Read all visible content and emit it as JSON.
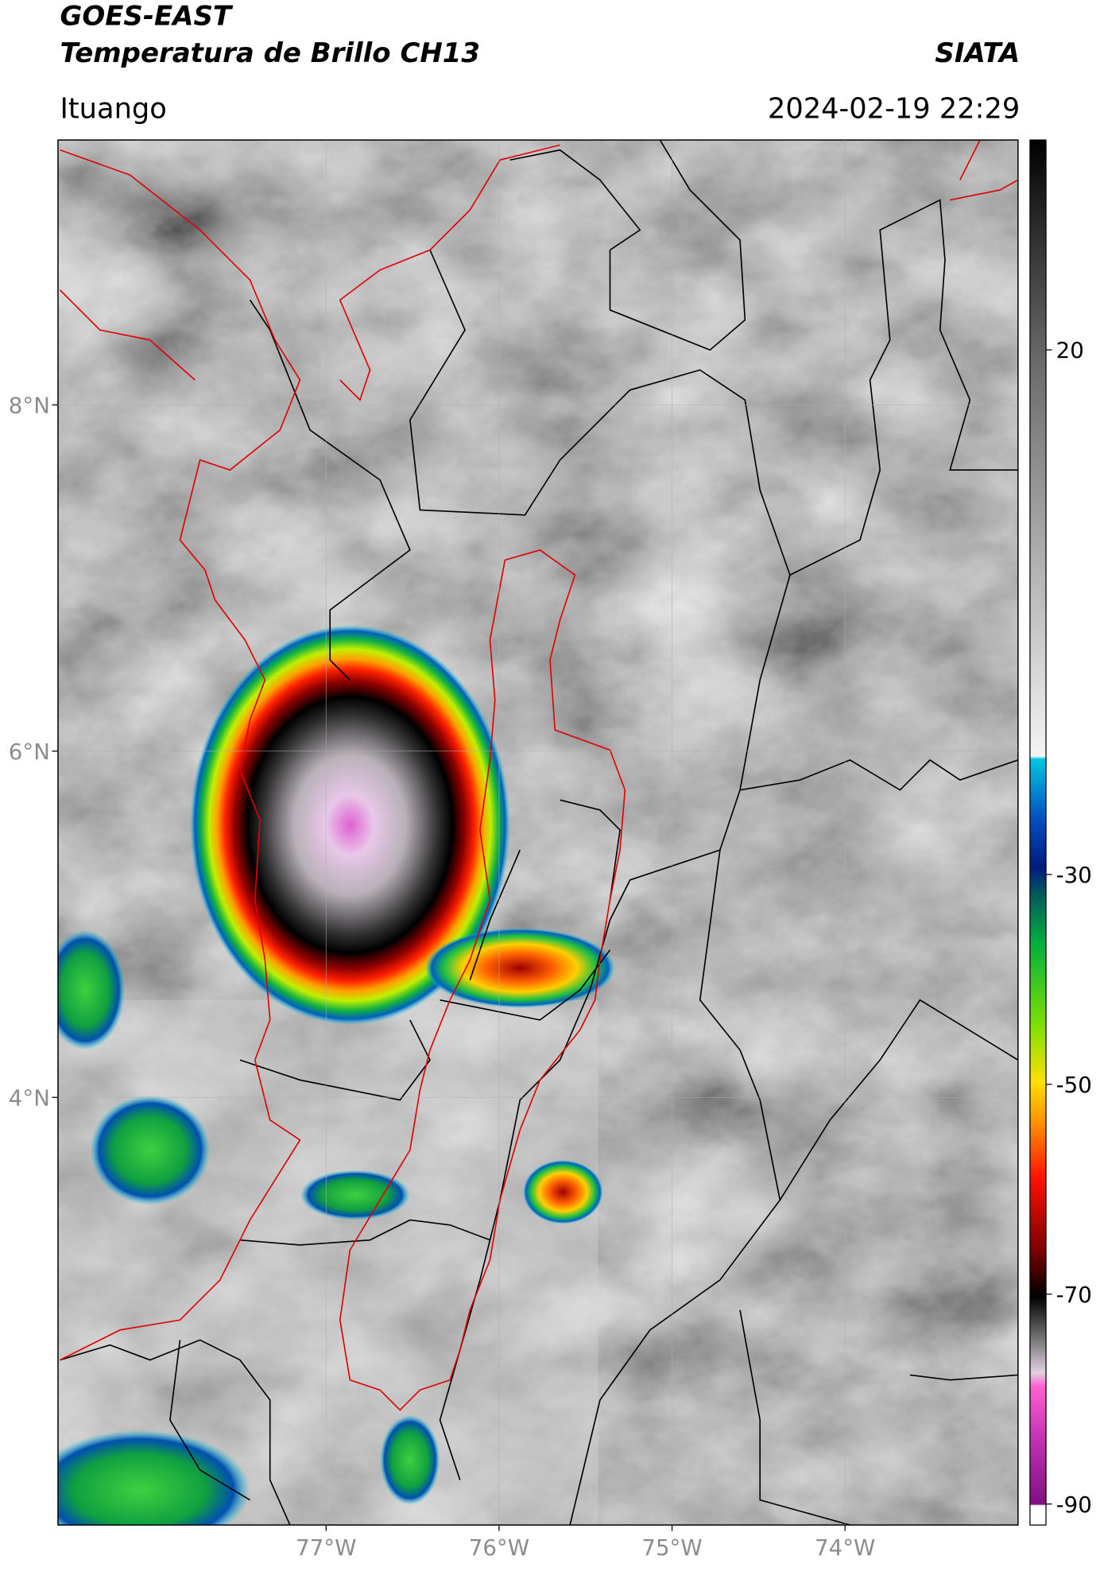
{
  "header": {
    "title": "GOES-EAST",
    "subtitle": "Temperatura de Brillo CH13",
    "source": "SIATA",
    "location": "Ituango",
    "datetime": "2024-02-19 22:29"
  },
  "map": {
    "xlim": [
      -78.55,
      -73.0
    ],
    "ylim": [
      1.53,
      9.53
    ],
    "xticks": [
      {
        "value": -77,
        "label": "77°W"
      },
      {
        "value": -76,
        "label": "76°W"
      },
      {
        "value": -75,
        "label": "75°W"
      },
      {
        "value": -74,
        "label": "74°W"
      }
    ],
    "yticks": [
      {
        "value": 8,
        "label": "8°N"
      },
      {
        "value": 6,
        "label": "6°N"
      },
      {
        "value": 4,
        "label": "4°N"
      }
    ],
    "grid": true
  },
  "colorbar": {
    "lim": [
      -92,
      40
    ],
    "ticks": [
      20,
      -30,
      -50,
      -70,
      -90
    ]
  }
}
